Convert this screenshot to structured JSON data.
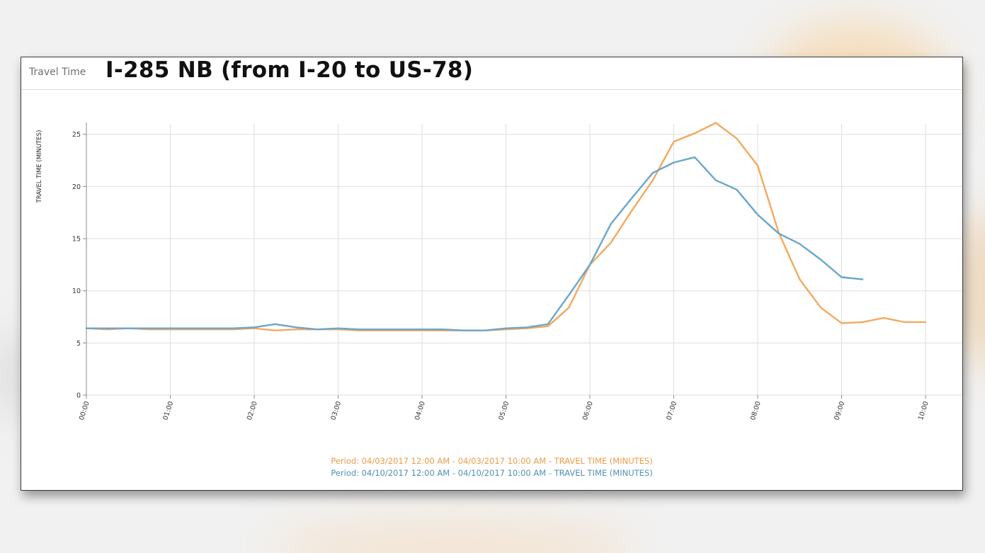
{
  "panel": {
    "label": "Travel Time",
    "title": "I-285 NB (from I-20 to US-78)"
  },
  "colors": {
    "series_1": "#f5a85e",
    "series_2": "#6aa6cb",
    "grid": "#dedede",
    "axis": "#888888",
    "tick_text": "#333333"
  },
  "chart_data": {
    "type": "line",
    "title": "I-285 NB (from I-20 to US-78)",
    "xlabel": "",
    "ylabel": "TRAVEL TIME (MINUTES)",
    "x_ticks": [
      "00:00",
      "01:00",
      "02:00",
      "03:00",
      "04:00",
      "05:00",
      "06:00",
      "07:00",
      "08:00",
      "09:00",
      "10:00"
    ],
    "y_ticks": [
      0,
      5,
      10,
      15,
      20,
      25
    ],
    "xlim": [
      "00:00",
      "10:00"
    ],
    "ylim": [
      0,
      26
    ],
    "grid": true,
    "legend_position": "bottom-center",
    "series": [
      {
        "name": "Period: 04/03/2017 12:00 AM - 04/03/2017 10:00 AM - TRAVEL TIME (MINUTES)",
        "x": [
          "00:00",
          "00:15",
          "00:30",
          "00:45",
          "01:00",
          "01:15",
          "01:30",
          "01:45",
          "02:00",
          "02:15",
          "02:30",
          "02:45",
          "03:00",
          "03:15",
          "03:30",
          "03:45",
          "04:00",
          "04:15",
          "04:30",
          "04:45",
          "05:00",
          "05:15",
          "05:30",
          "05:45",
          "06:00",
          "06:15",
          "06:30",
          "06:45",
          "07:00",
          "07:15",
          "07:30",
          "07:45",
          "08:00",
          "08:15",
          "08:30",
          "08:45",
          "09:00",
          "09:15",
          "09:30",
          "09:45",
          "10:00"
        ],
        "values": [
          6.4,
          6.3,
          6.4,
          6.3,
          6.3,
          6.3,
          6.3,
          6.3,
          6.4,
          6.2,
          6.3,
          6.3,
          6.3,
          6.2,
          6.2,
          6.2,
          6.2,
          6.2,
          6.2,
          6.2,
          6.3,
          6.4,
          6.6,
          8.4,
          12.5,
          14.6,
          17.7,
          20.6,
          24.3,
          25.1,
          26.1,
          24.6,
          22.0,
          15.6,
          11.1,
          8.4,
          6.9,
          7.0,
          7.4,
          7.0,
          7.0
        ]
      },
      {
        "name": "Period: 04/10/2017 12:00 AM - 04/10/2017 10:00 AM - TRAVEL TIME (MINUTES)",
        "x": [
          "00:00",
          "00:15",
          "00:30",
          "00:45",
          "01:00",
          "01:15",
          "01:30",
          "01:45",
          "02:00",
          "02:15",
          "02:30",
          "02:45",
          "03:00",
          "03:15",
          "03:30",
          "03:45",
          "04:00",
          "04:15",
          "04:30",
          "04:45",
          "05:00",
          "05:15",
          "05:30",
          "05:45",
          "06:00",
          "06:15",
          "06:30",
          "06:45",
          "07:00",
          "07:15",
          "07:30",
          "07:45",
          "08:00",
          "08:15",
          "08:30",
          "08:45",
          "09:00",
          "09:15"
        ],
        "values": [
          6.4,
          6.4,
          6.4,
          6.4,
          6.4,
          6.4,
          6.4,
          6.4,
          6.5,
          6.8,
          6.5,
          6.3,
          6.4,
          6.3,
          6.3,
          6.3,
          6.3,
          6.3,
          6.2,
          6.2,
          6.4,
          6.5,
          6.8,
          9.6,
          12.5,
          16.4,
          18.9,
          21.3,
          22.3,
          22.8,
          20.6,
          19.7,
          17.3,
          15.5,
          14.5,
          13.0,
          11.3,
          11.1
        ]
      }
    ]
  }
}
